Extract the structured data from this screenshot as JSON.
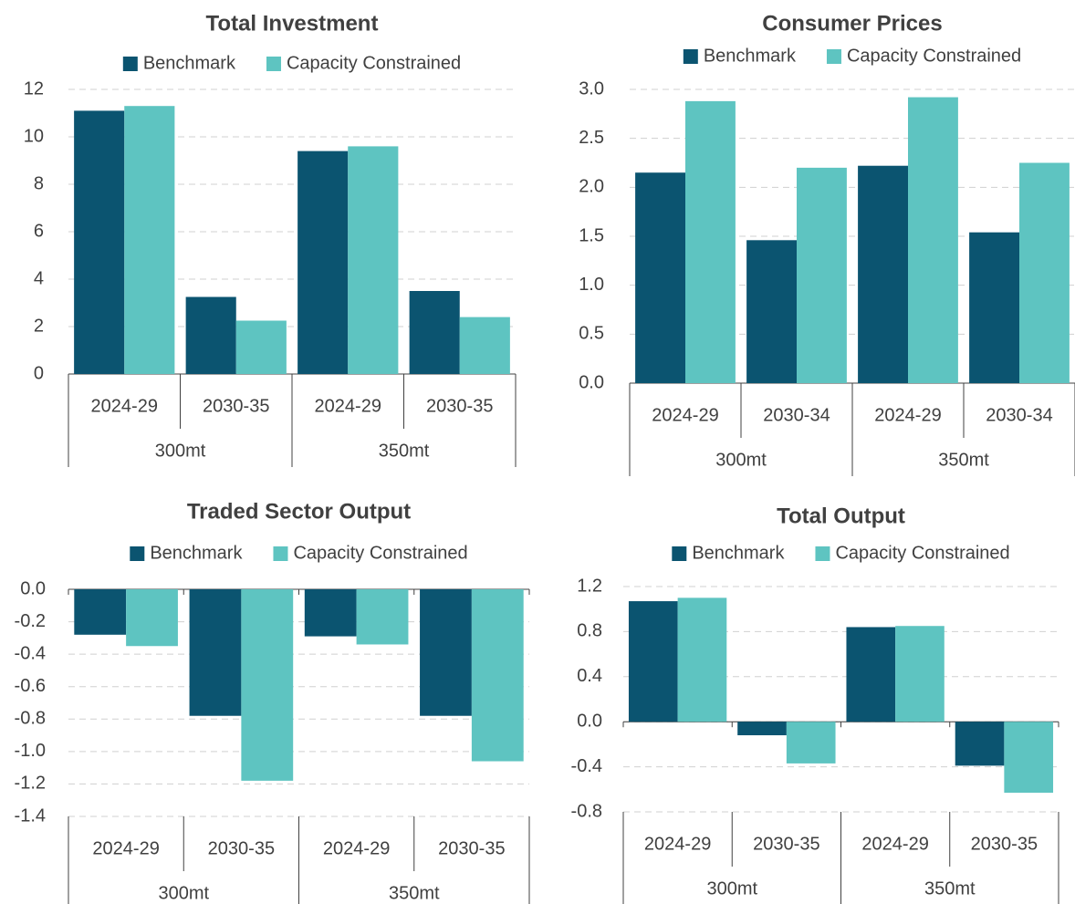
{
  "chart_data": [
    {
      "type": "bar",
      "title": "Total Investment",
      "categories": [
        "2024-29",
        "2030-35",
        "2024-29",
        "2030-35"
      ],
      "groups": [
        "300mt",
        "350mt"
      ],
      "series": [
        {
          "name": "Benchmark",
          "color": "#0b5470",
          "values": [
            11.1,
            3.25,
            9.4,
            3.5
          ]
        },
        {
          "name": "Capacity Constrained",
          "color": "#5ec4c1",
          "values": [
            11.3,
            2.25,
            9.6,
            2.4
          ]
        }
      ],
      "ylim": [
        0,
        12
      ],
      "yticks": [
        0,
        2,
        4,
        6,
        8,
        10,
        12
      ],
      "grid": true
    },
    {
      "type": "bar",
      "title": "Consumer Prices",
      "categories": [
        "2024-29",
        "2030-34",
        "2024-29",
        "2030-34"
      ],
      "groups": [
        "300mt",
        "350mt"
      ],
      "series": [
        {
          "name": "Benchmark",
          "color": "#0b5470",
          "values": [
            2.15,
            1.46,
            2.22,
            1.54
          ]
        },
        {
          "name": "Capacity Constrained",
          "color": "#5ec4c1",
          "values": [
            2.88,
            2.2,
            2.92,
            2.25
          ]
        }
      ],
      "ylim": [
        0,
        3
      ],
      "yticks": [
        {
          "value": 0,
          "label": "0.0"
        },
        0.5,
        {
          "value": 1,
          "label": "1.0"
        },
        1.5,
        {
          "value": 2,
          "label": "2.0"
        },
        2.5,
        {
          "value": 3,
          "label": "3.0"
        }
      ],
      "grid": true
    },
    {
      "type": "bar",
      "title": "Traded Sector Output",
      "categories": [
        "2024-29",
        "2030-35",
        "2024-29",
        "2030-35"
      ],
      "groups": [
        "300mt",
        "350mt"
      ],
      "series": [
        {
          "name": "Benchmark",
          "color": "#0b5470",
          "values": [
            -0.28,
            -0.78,
            -0.29,
            -0.78
          ]
        },
        {
          "name": "Capacity Constrained",
          "color": "#5ec4c1",
          "values": [
            -0.35,
            -1.18,
            -0.34,
            -1.06
          ]
        }
      ],
      "ylim": [
        -1.4,
        0
      ],
      "yticks": [
        {
          "value": 0,
          "label": "0.0"
        },
        -0.2,
        -0.4,
        -0.6,
        -0.8,
        {
          "value": -1,
          "label": "-1.0"
        },
        -1.2,
        -1.4
      ],
      "grid": true
    },
    {
      "type": "bar",
      "title": "Total Output",
      "categories": [
        "2024-29",
        "2030-35",
        "2024-29",
        "2030-35"
      ],
      "groups": [
        "300mt",
        "350mt"
      ],
      "series": [
        {
          "name": "Benchmark",
          "color": "#0b5470",
          "values": [
            1.07,
            -0.12,
            0.84,
            -0.39
          ]
        },
        {
          "name": "Capacity Constrained",
          "color": "#5ec4c1",
          "values": [
            1.1,
            -0.37,
            0.85,
            -0.63
          ]
        }
      ],
      "ylim": [
        -0.8,
        1.2
      ],
      "yticks": [
        1.2,
        0.8,
        0.4,
        {
          "value": 0,
          "label": "0.0"
        },
        -0.4,
        -0.8
      ],
      "grid": true
    }
  ]
}
